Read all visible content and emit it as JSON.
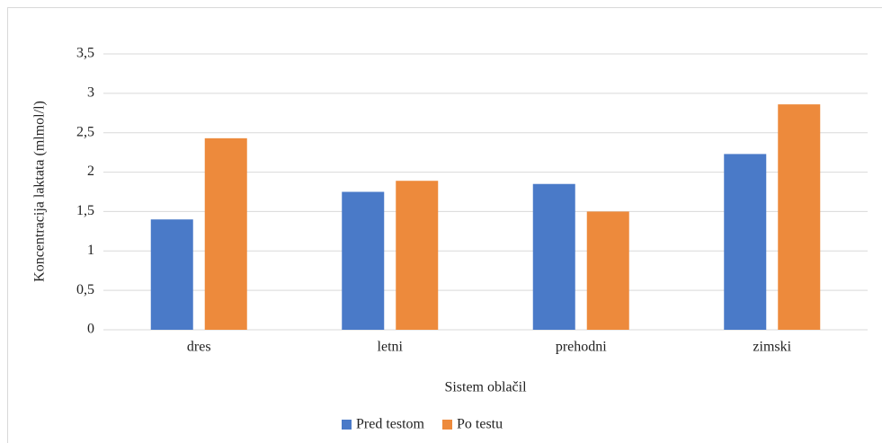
{
  "chart_data": {
    "type": "bar",
    "x_label": "Sistem oblačil",
    "y_label": "Koncentracija laktata (mlmol/l)",
    "categories": [
      "dres",
      "letni",
      "prehodni",
      "zimski"
    ],
    "series": [
      {
        "name": "Pred testom",
        "color": "#4a7ac8",
        "values": [
          1.4,
          1.75,
          1.85,
          2.23
        ]
      },
      {
        "name": "Po testu",
        "color": "#ed8a3c",
        "values": [
          2.43,
          1.89,
          1.5,
          2.86
        ]
      }
    ],
    "ylim": [
      0,
      3.5
    ],
    "yticks": [
      0,
      {
        "value": 0.5,
        "label": "0,5"
      },
      1,
      {
        "value": 1.5,
        "label": "1,5"
      },
      2,
      {
        "value": 2.5,
        "label": "2,5"
      },
      3,
      {
        "value": 3.5,
        "label": "3,5"
      }
    ],
    "grid": true,
    "legend": "bottom"
  }
}
